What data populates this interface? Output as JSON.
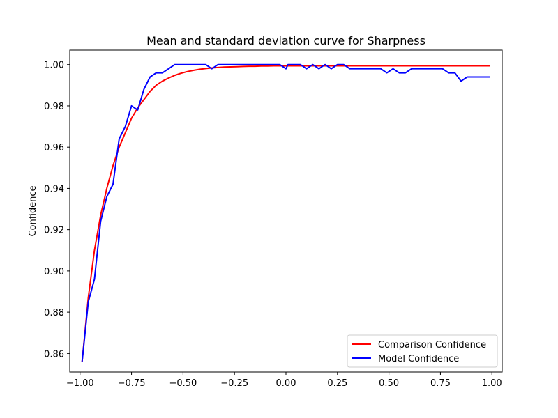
{
  "chart_data": {
    "type": "line",
    "title": "Mean and standard deviation curve for Sharpness",
    "xlabel": "",
    "ylabel": "Confidence",
    "xlim": [
      -1.05,
      1.05
    ],
    "ylim": [
      0.851,
      1.007
    ],
    "xticks": [
      -1.0,
      -0.75,
      -0.5,
      -0.25,
      0.0,
      0.25,
      0.5,
      0.75,
      1.0
    ],
    "xtick_labels": [
      "−1.00",
      "−0.75",
      "−0.50",
      "−0.25",
      "0.00",
      "0.25",
      "0.50",
      "0.75",
      "1.00"
    ],
    "yticks": [
      0.86,
      0.88,
      0.9,
      0.92,
      0.94,
      0.96,
      0.98,
      1.0
    ],
    "ytick_labels": [
      "0.86",
      "0.88",
      "0.90",
      "0.92",
      "0.94",
      "0.96",
      "0.98",
      "1.00"
    ],
    "grid": false,
    "legend_position": "lower-right",
    "series": [
      {
        "name": "Comparison Confidence",
        "color": "#ff0000",
        "x": [
          -0.99,
          -0.96,
          -0.93,
          -0.9,
          -0.87,
          -0.84,
          -0.81,
          -0.78,
          -0.75,
          -0.72,
          -0.69,
          -0.66,
          -0.63,
          -0.6,
          -0.57,
          -0.54,
          -0.51,
          -0.48,
          -0.45,
          -0.42,
          -0.39,
          -0.36,
          -0.33,
          -0.3,
          -0.27,
          -0.24,
          -0.21,
          -0.18,
          -0.15,
          -0.12,
          -0.09,
          -0.06,
          -0.03,
          0.0,
          0.05,
          0.1,
          0.2,
          0.3,
          0.4,
          0.5,
          0.6,
          0.7,
          0.8,
          0.9,
          0.99
        ],
        "values": [
          0.856,
          0.887,
          0.91,
          0.927,
          0.94,
          0.951,
          0.96,
          0.967,
          0.974,
          0.979,
          0.983,
          0.987,
          0.99,
          0.992,
          0.9935,
          0.9948,
          0.9958,
          0.9966,
          0.9972,
          0.9977,
          0.9981,
          0.9984,
          0.9986,
          0.9988,
          0.9989,
          0.999,
          0.9991,
          0.9992,
          0.9992,
          0.9993,
          0.9993,
          0.9994,
          0.9994,
          0.9994,
          0.9994,
          0.9994,
          0.9994,
          0.9994,
          0.9994,
          0.9994,
          0.9994,
          0.9994,
          0.9994,
          0.9994,
          0.9994
        ]
      },
      {
        "name": "Model Confidence",
        "color": "#0000ff",
        "x": [
          -0.99,
          -0.96,
          -0.93,
          -0.9,
          -0.87,
          -0.84,
          -0.81,
          -0.78,
          -0.75,
          -0.72,
          -0.69,
          -0.66,
          -0.63,
          -0.6,
          -0.57,
          -0.54,
          -0.51,
          -0.48,
          -0.45,
          -0.42,
          -0.39,
          -0.36,
          -0.33,
          -0.3,
          -0.27,
          -0.24,
          -0.21,
          -0.18,
          -0.15,
          -0.12,
          -0.09,
          -0.06,
          -0.03,
          0.0,
          0.01,
          0.04,
          0.07,
          0.1,
          0.13,
          0.16,
          0.19,
          0.22,
          0.25,
          0.28,
          0.31,
          0.34,
          0.37,
          0.4,
          0.43,
          0.46,
          0.49,
          0.52,
          0.55,
          0.58,
          0.61,
          0.64,
          0.67,
          0.7,
          0.73,
          0.76,
          0.79,
          0.82,
          0.85,
          0.88,
          0.91,
          0.94,
          0.97,
          0.99
        ],
        "values": [
          0.856,
          0.885,
          0.896,
          0.924,
          0.936,
          0.942,
          0.964,
          0.97,
          0.98,
          0.978,
          0.988,
          0.994,
          0.996,
          0.996,
          0.998,
          1.0,
          1.0,
          1.0,
          1.0,
          1.0,
          1.0,
          0.998,
          1.0,
          1.0,
          1.0,
          1.0,
          1.0,
          1.0,
          1.0,
          1.0,
          1.0,
          1.0,
          1.0,
          0.998,
          1.0,
          1.0,
          1.0,
          0.998,
          1.0,
          0.998,
          1.0,
          0.998,
          1.0,
          1.0,
          0.998,
          0.998,
          0.998,
          0.998,
          0.998,
          0.998,
          0.996,
          0.998,
          0.996,
          0.996,
          0.998,
          0.998,
          0.998,
          0.998,
          0.998,
          0.998,
          0.996,
          0.996,
          0.992,
          0.994,
          0.994,
          0.994,
          0.994,
          0.994
        ]
      }
    ]
  }
}
